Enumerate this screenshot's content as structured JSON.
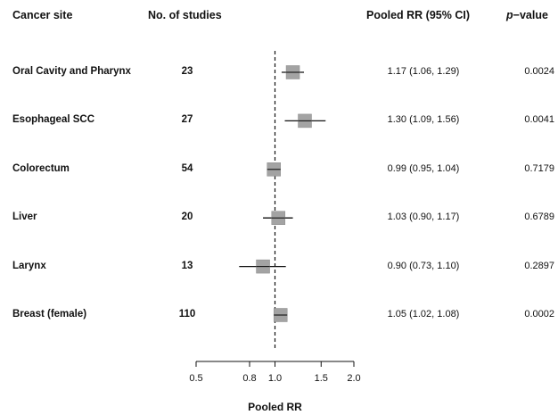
{
  "headers": {
    "site": "Cancer site",
    "studies": "No. of studies",
    "pooled": "Pooled RR (95% CI)",
    "p_prefix": "p",
    "p_suffix": "−value"
  },
  "chart_data": {
    "type": "forest",
    "xlabel": "Pooled RR",
    "scale": "log",
    "xlim": [
      0.5,
      2.0
    ],
    "xticks": [
      0.5,
      0.8,
      1.0,
      1.5,
      2.0
    ],
    "xtick_labels": [
      "0.5",
      "0.8",
      "1.0",
      "1.5",
      "2.0"
    ],
    "reference_line": 1.0,
    "rows": [
      {
        "site": "Oral Cavity and Pharynx",
        "studies": "23",
        "rr": 1.17,
        "lo": 1.06,
        "hi": 1.29,
        "ci_text": "1.17 (1.06, 1.29)",
        "p": "0.0024"
      },
      {
        "site": "Esophageal SCC",
        "studies": "27",
        "rr": 1.3,
        "lo": 1.09,
        "hi": 1.56,
        "ci_text": "1.30 (1.09, 1.56)",
        "p": "0.0041"
      },
      {
        "site": "Colorectum",
        "studies": "54",
        "rr": 0.99,
        "lo": 0.95,
        "hi": 1.04,
        "ci_text": "0.99 (0.95, 1.04)",
        "p": "0.7179"
      },
      {
        "site": "Liver",
        "studies": "20",
        "rr": 1.03,
        "lo": 0.9,
        "hi": 1.17,
        "ci_text": "1.03 (0.90, 1.17)",
        "p": "0.6789"
      },
      {
        "site": "Larynx",
        "studies": "13",
        "rr": 0.9,
        "lo": 0.73,
        "hi": 1.1,
        "ci_text": "0.90 (0.73, 1.10)",
        "p": "0.2897"
      },
      {
        "site": "Breast (female)",
        "studies": "110",
        "rr": 1.05,
        "lo": 1.02,
        "hi": 1.08,
        "ci_text": "1.05 (1.02, 1.08)",
        "p": "0.0002"
      }
    ]
  }
}
